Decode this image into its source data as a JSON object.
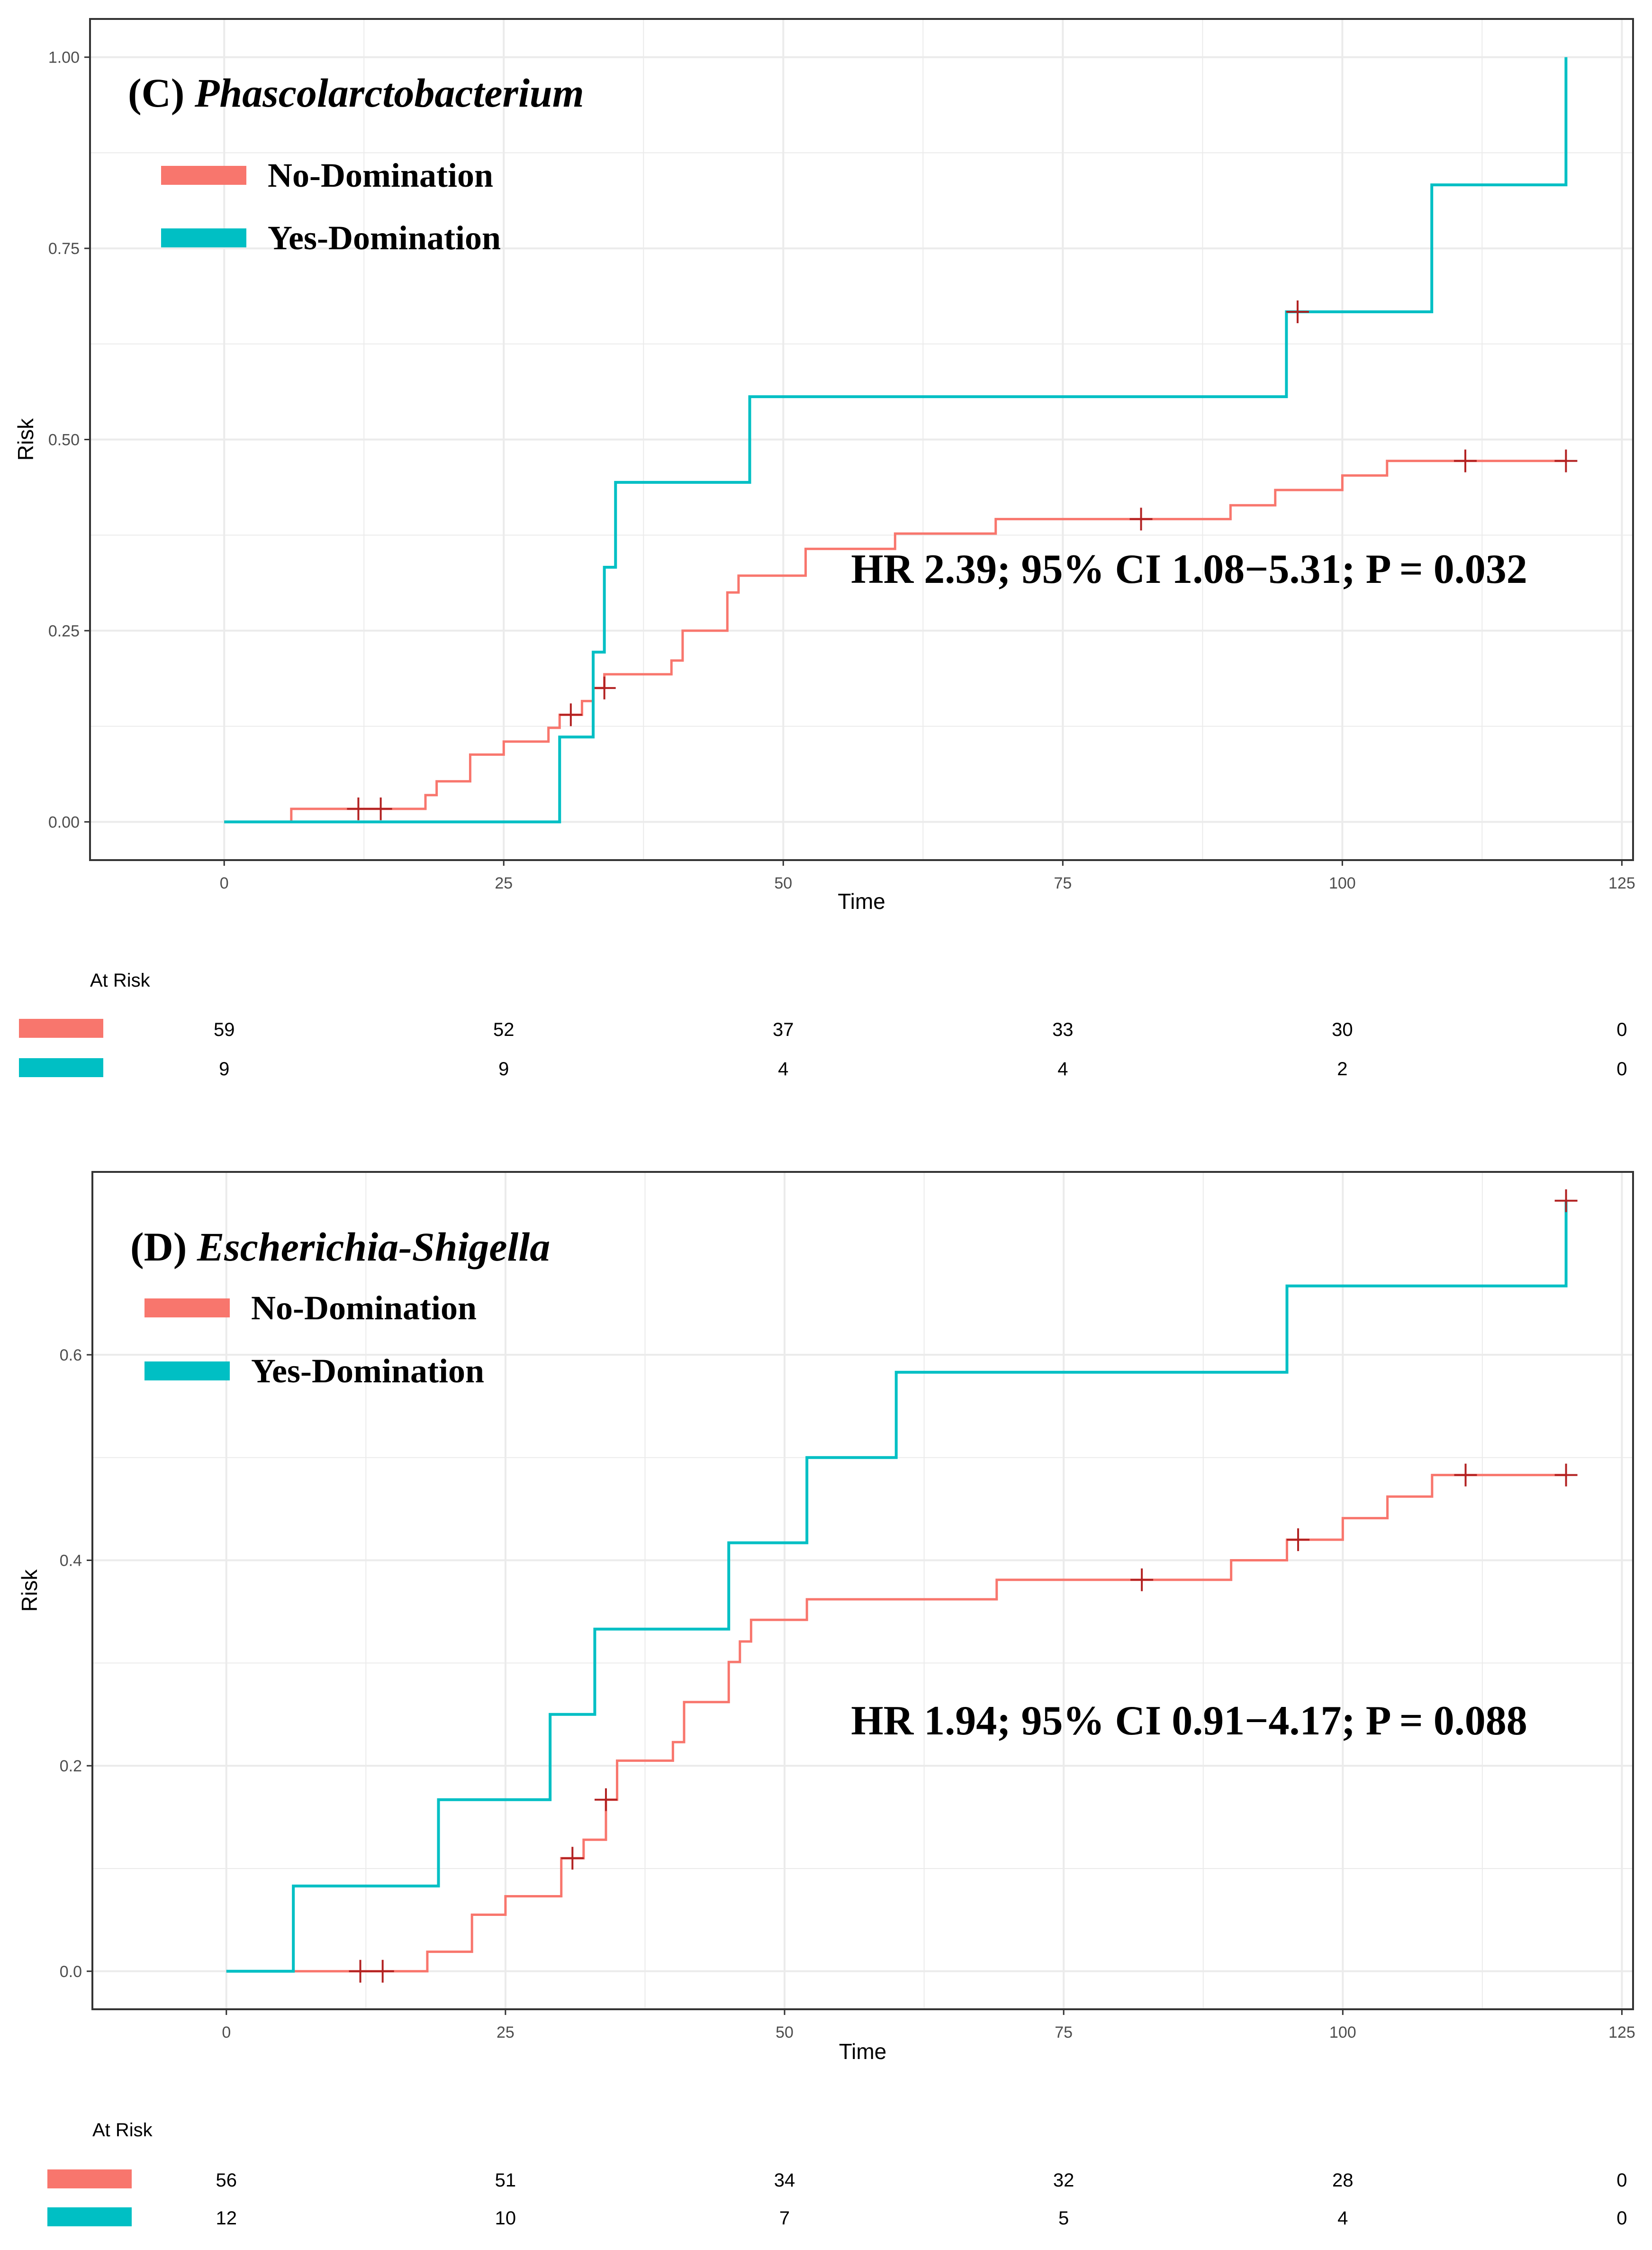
{
  "colors": {
    "no": "#F8766D",
    "yes": "#00BFC4",
    "censor": "#B22222",
    "grid": "#EBEBEB",
    "panel": "#333333"
  },
  "chart_data": [
    {
      "type": "line",
      "id": "C",
      "title_prefix": "(C)",
      "title_name": "Phascolarctobacterium",
      "xlabel": "Time",
      "ylabel": "Risk",
      "xlim": [
        -12,
        126
      ],
      "ylim": [
        -0.05,
        1.05
      ],
      "xticks": [
        0,
        25,
        50,
        75,
        100,
        125
      ],
      "yticks": [
        0.0,
        0.25,
        0.5,
        0.75,
        1.0
      ],
      "ytick_labels": [
        "0.00",
        "0.25",
        "0.50",
        "0.75",
        "1.00"
      ],
      "legend": [
        "No-Domination",
        "Yes-Domination"
      ],
      "annotation": "HR 2.39; 95% CI 1.08−5.31; P = 0.032",
      "series": [
        {
          "name": "No-Domination",
          "steps": [
            [
              0,
              0
            ],
            [
              6,
              0.017
            ],
            [
              18,
              0.035
            ],
            [
              19,
              0.053
            ],
            [
              22,
              0.088
            ],
            [
              25,
              0.105
            ],
            [
              29,
              0.123
            ],
            [
              30,
              0.14
            ],
            [
              32,
              0.158
            ],
            [
              33,
              0.175
            ],
            [
              34,
              0.193
            ],
            [
              40,
              0.211
            ],
            [
              41,
              0.25
            ],
            [
              45,
              0.3
            ],
            [
              46,
              0.322
            ],
            [
              52,
              0.357
            ],
            [
              60,
              0.377
            ],
            [
              69,
              0.396
            ],
            [
              90,
              0.414
            ],
            [
              94,
              0.434
            ],
            [
              100,
              0.453
            ],
            [
              104,
              0.472
            ],
            [
              120,
              0.472
            ]
          ],
          "censors": [
            [
              12,
              0.017
            ],
            [
              14,
              0.017
            ],
            [
              31,
              0.14
            ],
            [
              34,
              0.175
            ],
            [
              82,
              0.396
            ],
            [
              111,
              0.472
            ],
            [
              120,
              0.472
            ]
          ]
        },
        {
          "name": "Yes-Domination",
          "steps": [
            [
              0,
              0
            ],
            [
              30,
              0.111
            ],
            [
              33,
              0.222
            ],
            [
              34,
              0.333
            ],
            [
              35,
              0.444
            ],
            [
              47,
              0.556
            ],
            [
              95,
              0.667
            ],
            [
              108,
              0.833
            ],
            [
              120,
              1.0
            ]
          ],
          "censors": [
            [
              96,
              0.667
            ]
          ]
        }
      ],
      "at_risk": {
        "header": "At Risk",
        "times": [
          0,
          25,
          50,
          75,
          100,
          125
        ],
        "rows": [
          {
            "name": "No-Domination",
            "values": [
              "59",
              "52",
              "37",
              "33",
              "30",
              "0"
            ]
          },
          {
            "name": "Yes-Domination",
            "values": [
              "9",
              "9",
              "4",
              "4",
              "2",
              "0"
            ]
          }
        ]
      }
    },
    {
      "type": "line",
      "id": "D",
      "title_prefix": "(D)",
      "title_name": "Escherichia-Shigella",
      "xlabel": "Time",
      "ylabel": "Risk",
      "xlim": [
        -12,
        126
      ],
      "ylim": [
        -0.037,
        0.778
      ],
      "xticks": [
        0,
        25,
        50,
        75,
        100,
        125
      ],
      "yticks": [
        0.0,
        0.2,
        0.4,
        0.6
      ],
      "ytick_labels": [
        "0.0",
        "0.2",
        "0.4",
        "0.6"
      ],
      "legend": [
        "No-Domination",
        "Yes-Domination"
      ],
      "annotation": "HR 1.94; 95% CI 0.91−4.17; P = 0.088",
      "series": [
        {
          "name": "No-Domination",
          "steps": [
            [
              0,
              0
            ],
            [
              18,
              0.019
            ],
            [
              22,
              0.055
            ],
            [
              25,
              0.073
            ],
            [
              30,
              0.11
            ],
            [
              32,
              0.128
            ],
            [
              34,
              0.167
            ],
            [
              35,
              0.205
            ],
            [
              40,
              0.223
            ],
            [
              41,
              0.262
            ],
            [
              45,
              0.301
            ],
            [
              46,
              0.321
            ],
            [
              47,
              0.342
            ],
            [
              52,
              0.362
            ],
            [
              69,
              0.381
            ],
            [
              90,
              0.4
            ],
            [
              95,
              0.42
            ],
            [
              100,
              0.441
            ],
            [
              104,
              0.462
            ],
            [
              108,
              0.483
            ],
            [
              120,
              0.483
            ]
          ],
          "censors": [
            [
              12,
              0.0
            ],
            [
              14,
              0.0
            ],
            [
              31,
              0.11
            ],
            [
              34,
              0.167
            ],
            [
              82,
              0.381
            ],
            [
              96,
              0.42
            ],
            [
              111,
              0.483
            ],
            [
              120,
              0.483
            ]
          ]
        },
        {
          "name": "Yes-Domination",
          "steps": [
            [
              0,
              0
            ],
            [
              6,
              0.083
            ],
            [
              19,
              0.167
            ],
            [
              29,
              0.25
            ],
            [
              33,
              0.333
            ],
            [
              45,
              0.417
            ],
            [
              52,
              0.5
            ],
            [
              60,
              0.583
            ],
            [
              95,
              0.667
            ],
            [
              120,
              0.75
            ]
          ],
          "censors": [
            [
              120,
              0.75
            ]
          ]
        }
      ],
      "at_risk": {
        "header": "At Risk",
        "times": [
          0,
          25,
          50,
          75,
          100,
          125
        ],
        "rows": [
          {
            "name": "No-Domination",
            "values": [
              "56",
              "51",
              "34",
              "32",
              "28",
              "0"
            ]
          },
          {
            "name": "Yes-Domination",
            "values": [
              "12",
              "10",
              "7",
              "5",
              "4",
              "0"
            ]
          }
        ]
      }
    }
  ]
}
